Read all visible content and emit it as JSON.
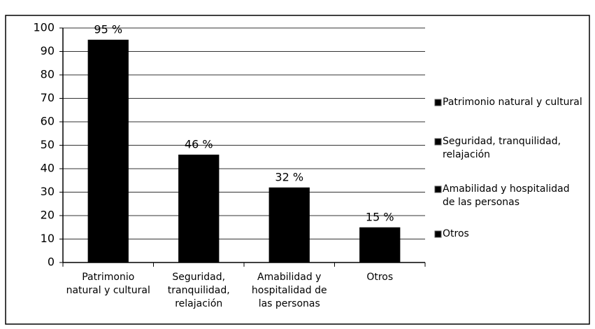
{
  "chart_data": {
    "type": "bar",
    "categories": [
      "Patrimonio natural y cultural",
      "Seguridad, tranquilidad, relajación",
      "Amabilidad y hospitalidad de las personas",
      "Otros"
    ],
    "values": [
      95,
      46,
      32,
      15
    ],
    "value_labels": [
      "95 %",
      "46 %",
      "32 %",
      "15 %"
    ],
    "color": "#000000",
    "ylim": [
      0,
      100
    ],
    "yticks": [
      0,
      10,
      20,
      30,
      40,
      50,
      60,
      70,
      80,
      90,
      100
    ],
    "grid": true,
    "legend": "right"
  }
}
